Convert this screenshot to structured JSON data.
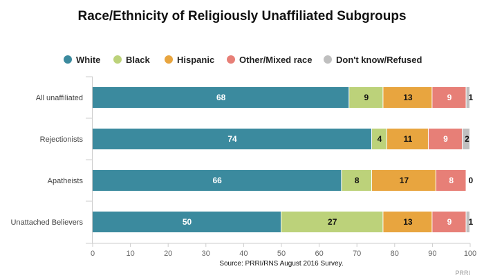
{
  "chart_data": {
    "type": "bar",
    "orientation": "horizontal",
    "stacked": true,
    "title": "Race/Ethnicity of Religiously Unaffiliated Subgroups",
    "categories": [
      "All unaffiliated",
      "Rejectionists",
      "Apatheists",
      "Unattached Believers"
    ],
    "series": [
      {
        "name": "White",
        "color": "#3b8a9e",
        "label_color": "#ffffff",
        "values": [
          68,
          74,
          66,
          50
        ]
      },
      {
        "name": "Black",
        "color": "#bcd27a",
        "label_color": "#111111",
        "values": [
          9,
          4,
          8,
          27
        ]
      },
      {
        "name": "Hispanic",
        "color": "#e8a53f",
        "label_color": "#111111",
        "values": [
          13,
          11,
          17,
          13
        ]
      },
      {
        "name": "Other/Mixed race",
        "color": "#e77f77",
        "label_color": "#ffffff",
        "values": [
          9,
          9,
          8,
          9
        ]
      },
      {
        "name": "Don't know/Refused",
        "color": "#bfbfbf",
        "label_color": "#111111",
        "values": [
          1,
          2,
          0,
          1
        ]
      }
    ],
    "xlim": [
      0,
      100
    ],
    "xticks": [
      0,
      10,
      20,
      30,
      40,
      50,
      60,
      70,
      80,
      90,
      100
    ],
    "grid": false,
    "legend_position": "top",
    "source": "Source: PRRI/RNS August 2016 Survey.",
    "credit": "PRRI"
  }
}
